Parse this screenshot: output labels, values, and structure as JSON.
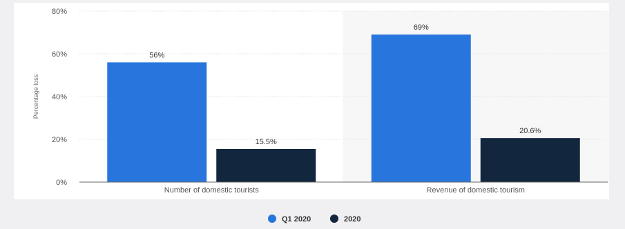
{
  "chart_data": {
    "type": "bar",
    "title": "",
    "xlabel": "",
    "ylabel": "Percentage loss",
    "categories": [
      "Number of domestic tourists",
      "Revenue of domestic tourism"
    ],
    "series": [
      {
        "name": "Q1 2020",
        "color": "#2876dd",
        "values": [
          56,
          69
        ],
        "labels": [
          "56%",
          "69%"
        ]
      },
      {
        "name": "2020",
        "color": "#12263d",
        "values": [
          15.5,
          20.6
        ],
        "labels": [
          "15.5%",
          "20.6%"
        ]
      }
    ],
    "ylim": [
      0,
      80
    ],
    "yticks": [
      0,
      20,
      40,
      60,
      80
    ],
    "ytick_labels": [
      "0%",
      "20%",
      "40%",
      "60%",
      "80%"
    ],
    "grid": true,
    "legend_position": "bottom-center"
  }
}
